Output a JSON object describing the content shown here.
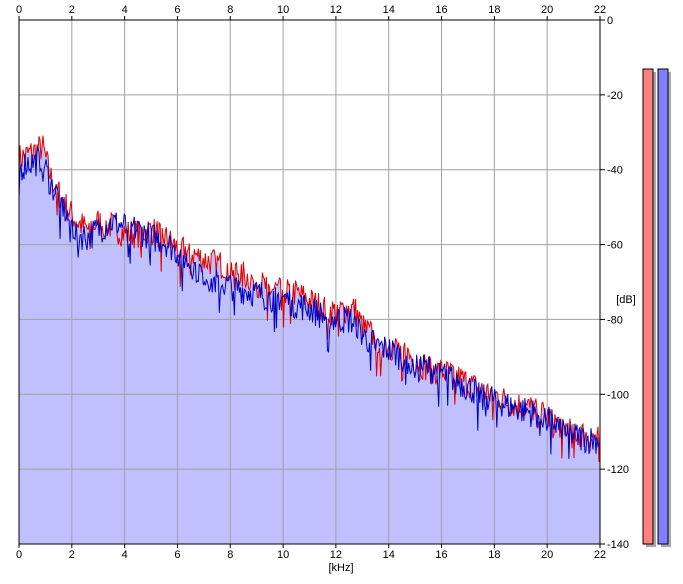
{
  "chart_data": {
    "type": "area",
    "xlabel": "[kHz]",
    "ylabel": "[dB]",
    "xlim": [
      0,
      22
    ],
    "ylim": [
      -140,
      0
    ],
    "x_ticks": [
      0,
      2,
      4,
      6,
      8,
      10,
      12,
      14,
      16,
      18,
      20,
      22
    ],
    "y_ticks": [
      0,
      -20,
      -40,
      -60,
      -80,
      -100,
      -120,
      -140
    ],
    "grid": true,
    "series": [
      {
        "color": "#e00000",
        "x": [
          0,
          0.3,
          0.6,
          0.9,
          1.2,
          1.5,
          1.8,
          2.2,
          2.6,
          3.0,
          3.5,
          4.0,
          4.5,
          5.0,
          5.5,
          6.0,
          6.5,
          7.0,
          7.5,
          8.0,
          8.5,
          9.0,
          9.5,
          10.0,
          10.5,
          11.0,
          11.5,
          12.0,
          12.5,
          12.7,
          13.0,
          13.5,
          14.0,
          14.5,
          15.0,
          15.5,
          16.0,
          16.5,
          17.0,
          17.5,
          18.0,
          18.5,
          19.0,
          19.5,
          20.0,
          20.5,
          21.0,
          21.5,
          22.0
        ],
        "values": [
          -37,
          -36,
          -35,
          -34,
          -42,
          -46,
          -50,
          -54,
          -56,
          -54,
          -55,
          -57,
          -57,
          -56,
          -58,
          -61,
          -62,
          -64,
          -65,
          -66,
          -68,
          -70,
          -72,
          -72,
          -73,
          -75,
          -77,
          -78,
          -77,
          -77,
          -82,
          -85,
          -87,
          -88,
          -91,
          -93,
          -94,
          -95,
          -97,
          -99,
          -100,
          -102,
          -103,
          -104,
          -106,
          -108,
          -110,
          -111,
          -112
        ]
      },
      {
        "color": "#0000c0",
        "x": [
          0,
          0.3,
          0.6,
          0.9,
          1.2,
          1.5,
          1.8,
          2.2,
          2.6,
          3.0,
          3.5,
          4.0,
          4.5,
          5.0,
          5.5,
          6.0,
          6.5,
          7.0,
          7.5,
          8.0,
          8.5,
          9.0,
          9.5,
          10.0,
          10.5,
          11.0,
          11.5,
          12.0,
          12.5,
          12.7,
          13.0,
          13.5,
          14.0,
          14.5,
          15.0,
          15.5,
          16.0,
          16.5,
          17.0,
          17.5,
          18.0,
          18.5,
          19.0,
          19.5,
          20.0,
          20.5,
          21.0,
          21.5,
          22.0
        ],
        "values": [
          -40,
          -38,
          -38,
          -37,
          -44,
          -47,
          -52,
          -57,
          -58,
          -56,
          -54,
          -55,
          -56,
          -58,
          -59,
          -62,
          -65,
          -68,
          -70,
          -71,
          -72,
          -73,
          -74,
          -74,
          -76,
          -77,
          -79,
          -80,
          -80,
          -81,
          -84,
          -87,
          -88,
          -90,
          -92,
          -93,
          -94,
          -96,
          -98,
          -100,
          -101,
          -103,
          -104,
          -105,
          -106,
          -109,
          -111,
          -112,
          -112
        ]
      }
    ],
    "level_meters": [
      {
        "color": "#ff8080",
        "level_db": 0
      },
      {
        "color": "#8080ff",
        "level_db": 0
      }
    ],
    "fill_color": "#c0c0ff"
  }
}
